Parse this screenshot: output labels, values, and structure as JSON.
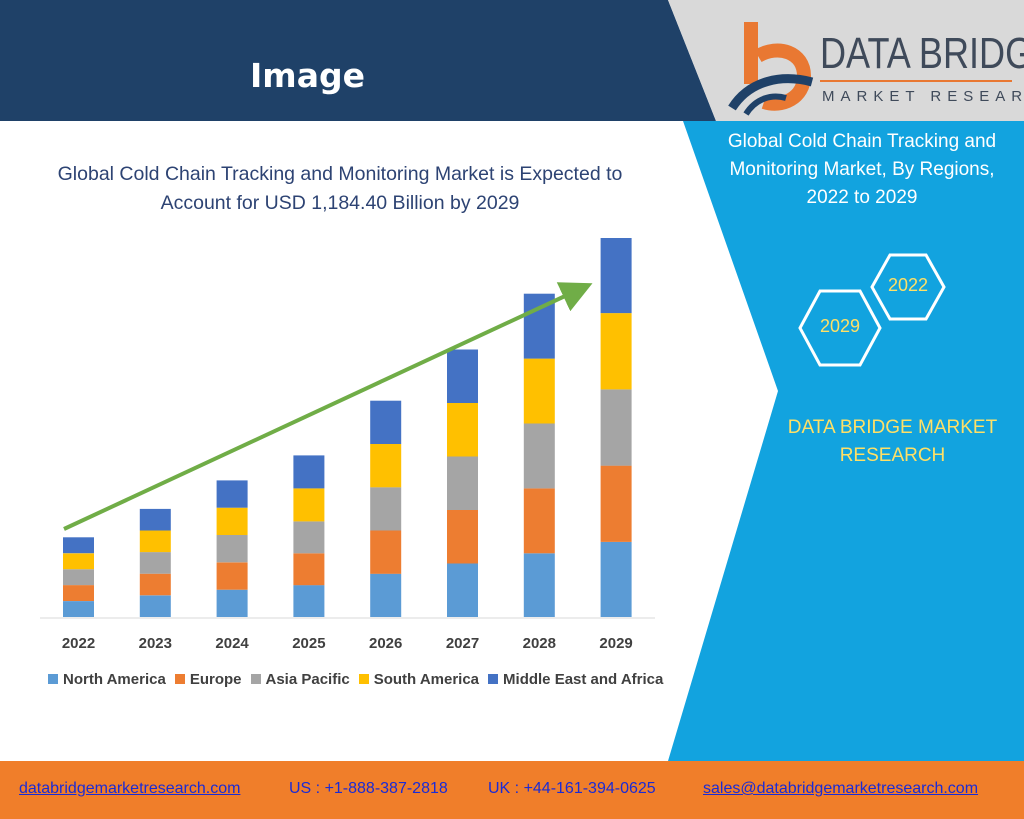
{
  "header": {
    "title": "Image",
    "bg_color": "#1f4168",
    "logo_line1": "DATA BRIDGE",
    "logo_line2": "MARKET RESEARCH",
    "logo_icon": "data-bridge-b-logo-icon"
  },
  "right_panel": {
    "title_line1": "Global Cold Chain Tracking and",
    "title_line2": "Monitoring Market, By Regions,",
    "title_line3": "2022 to 2029",
    "hex_top": "2022",
    "hex_bottom": "2029",
    "brand_line1": "DATA BRIDGE MARKET",
    "brand_line2": "RESEARCH",
    "bg_color": "#12a3df",
    "accent_color": "#ffe066"
  },
  "chart_title_line1": "Global Cold Chain Tracking and Monitoring Market is Expected to",
  "chart_title_line2": "Account for USD 1,184.40 Billion by 2029",
  "chart_data": {
    "type": "bar",
    "stacked": true,
    "categories": [
      "2022",
      "2023",
      "2024",
      "2025",
      "2026",
      "2027",
      "2028",
      "2029"
    ],
    "series": [
      {
        "name": "North America",
        "color": "#5b9bd5",
        "values": [
          14,
          19,
          24,
          28,
          38,
          47,
          56,
          66
        ]
      },
      {
        "name": "Europe",
        "color": "#ed7d31",
        "values": [
          14,
          19,
          24,
          28,
          38,
          47,
          57,
          67
        ]
      },
      {
        "name": "Asia Pacific",
        "color": "#a5a5a5",
        "values": [
          14,
          19,
          24,
          28,
          38,
          47,
          57,
          67
        ]
      },
      {
        "name": "South America",
        "color": "#ffc000",
        "values": [
          14,
          19,
          24,
          29,
          38,
          47,
          57,
          67
        ]
      },
      {
        "name": "Middle East and Africa",
        "color": "#4472c4",
        "values": [
          14,
          19,
          24,
          29,
          38,
          47,
          57,
          66
        ]
      }
    ],
    "ylim": [
      0,
      340
    ],
    "grid": false,
    "legend_position": "bottom",
    "trend_arrow_color": "#70ad47"
  },
  "footer": {
    "website": "databridgemarketresearch.com",
    "us_phone": "US : +1-888-387-2818",
    "uk_phone": "UK : +44-161-394-0625",
    "email": "sales@databridgemarketresearch.com",
    "bg_color": "#f07e2a",
    "text_color": "#1a2bd6"
  }
}
